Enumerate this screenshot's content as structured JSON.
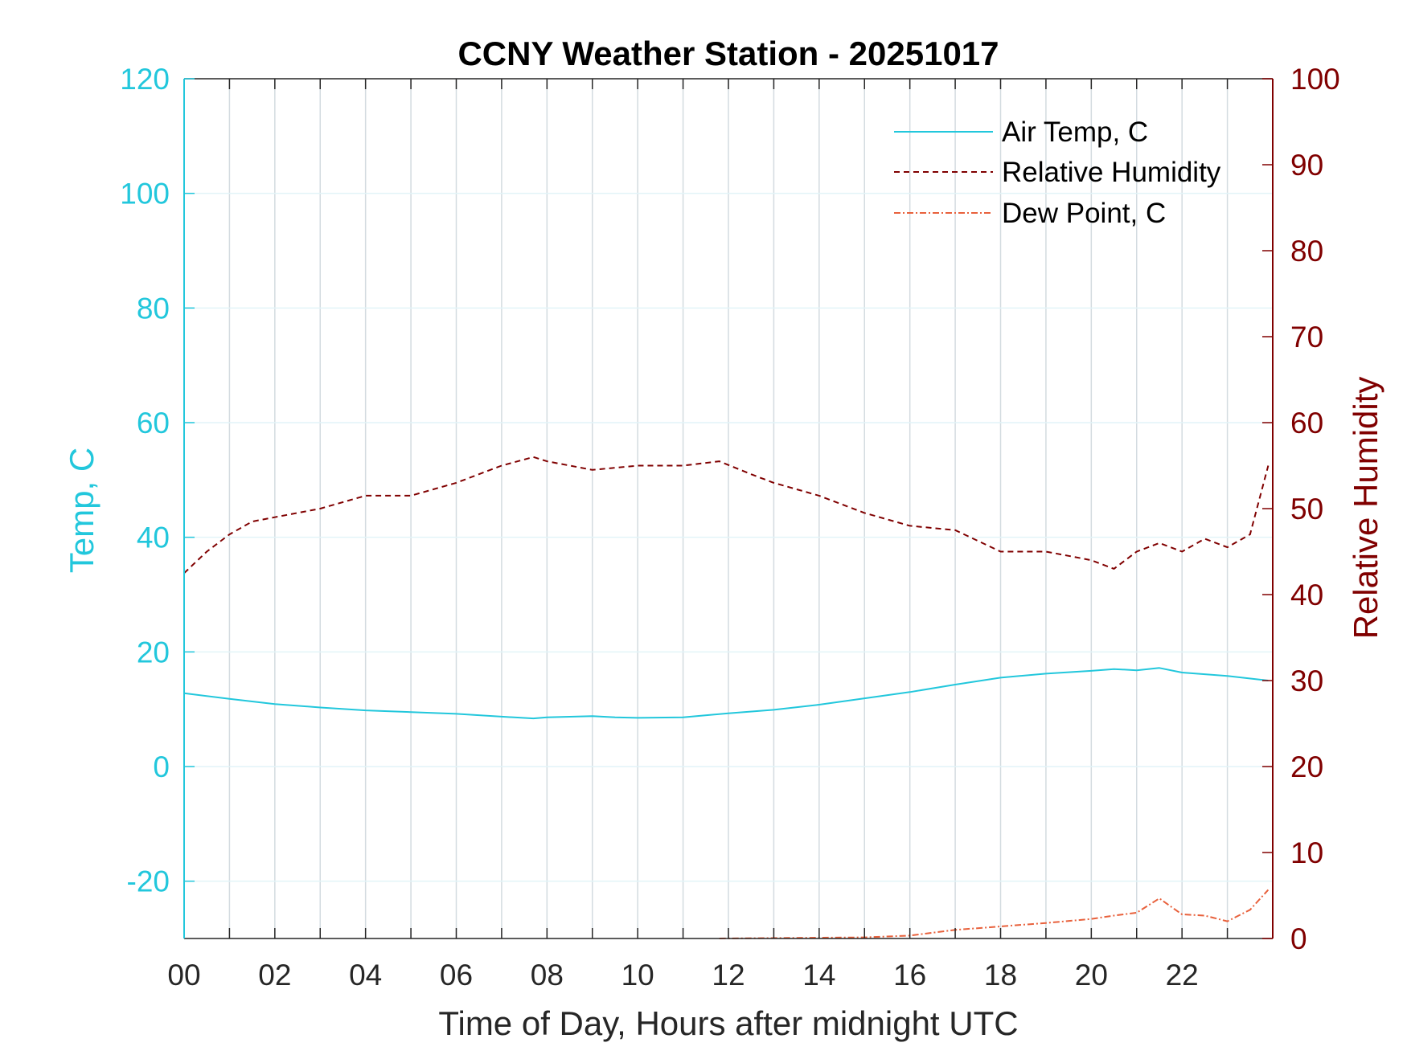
{
  "colors": {
    "temp": "#22c7dc",
    "humidity": "#800000",
    "dewpoint": "#e8613c",
    "grid": "#d3dbe0",
    "axis": "#262626",
    "background": "#ffffff"
  },
  "chart_data": {
    "type": "line",
    "title": "CCNY Weather Station - 20251017",
    "xlabel": "Time of Day, Hours after midnight UTC",
    "ylabel_left": "Temp, C",
    "ylabel_right": "Relative Humidity",
    "xlim": [
      0,
      24
    ],
    "ylim_left": [
      -30,
      120
    ],
    "ylim_right": [
      0,
      100
    ],
    "x_ticks": [
      0,
      2,
      4,
      6,
      8,
      10,
      12,
      14,
      16,
      18,
      20,
      22
    ],
    "x_tick_labels": [
      "00",
      "02",
      "04",
      "06",
      "08",
      "10",
      "12",
      "14",
      "16",
      "18",
      "20",
      "22"
    ],
    "y_left_ticks": [
      -20,
      0,
      20,
      40,
      60,
      80,
      100,
      120
    ],
    "y_left_tick_labels": [
      "-20",
      "0",
      "20",
      "40",
      "60",
      "80",
      "100",
      "120"
    ],
    "y_right_ticks": [
      0,
      10,
      20,
      30,
      40,
      50,
      60,
      70,
      80,
      90,
      100
    ],
    "y_right_tick_labels": [
      "0",
      "10",
      "20",
      "30",
      "40",
      "50",
      "60",
      "70",
      "80",
      "90",
      "100"
    ],
    "legend_position": "top-right",
    "grid": true,
    "series": [
      {
        "name": "Air Temp, C",
        "axis": "left",
        "style": "solid",
        "x": [
          0,
          1,
          2,
          3,
          4,
          5,
          6,
          7,
          7.7,
          8,
          9,
          9.5,
          10,
          11,
          12,
          13,
          14,
          15,
          16,
          17,
          18,
          19,
          20,
          20.5,
          21,
          21.5,
          22,
          23,
          23.9
        ],
        "values": [
          12.8,
          11.8,
          10.9,
          10.3,
          9.8,
          9.5,
          9.2,
          8.7,
          8.4,
          8.6,
          8.8,
          8.6,
          8.5,
          8.6,
          9.3,
          9.9,
          10.8,
          11.9,
          13.0,
          14.3,
          15.5,
          16.2,
          16.7,
          17.0,
          16.8,
          17.2,
          16.4,
          15.8,
          15.0
        ]
      },
      {
        "name": "Relative Humidity",
        "axis": "right",
        "style": "dashed",
        "x": [
          0,
          0.5,
          1,
          1.5,
          2,
          3,
          4,
          5,
          6,
          6.5,
          7,
          7.7,
          8,
          9,
          10,
          11,
          11.8,
          12.5,
          13,
          14,
          15,
          16,
          17,
          18,
          19,
          19.5,
          20,
          20.5,
          21,
          21.5,
          22,
          22.5,
          23,
          23.5,
          23.9
        ],
        "values": [
          42.5,
          45,
          47,
          48.5,
          49,
          50,
          51.5,
          51.5,
          53,
          54,
          55,
          56,
          55.5,
          54.5,
          55,
          55,
          55.5,
          54,
          53,
          51.5,
          49.5,
          48,
          47.5,
          45,
          45,
          44.5,
          44,
          43,
          45,
          46,
          45,
          46.5,
          45.5,
          47,
          55
        ]
      },
      {
        "name": "Dew Point, C",
        "axis": "left",
        "style": "dashdot",
        "x": [
          11.8,
          13.3,
          15,
          16,
          17,
          18,
          19,
          20,
          20.5,
          21,
          21.5,
          22,
          22.5,
          23,
          23.5,
          23.9
        ],
        "values": [
          -30,
          -29.9,
          -29.8,
          -29.5,
          -28.5,
          -27.9,
          -27.3,
          -26.6,
          -26,
          -25.5,
          -23,
          -25.8,
          -26,
          -27,
          -25,
          -21.5
        ]
      }
    ]
  }
}
